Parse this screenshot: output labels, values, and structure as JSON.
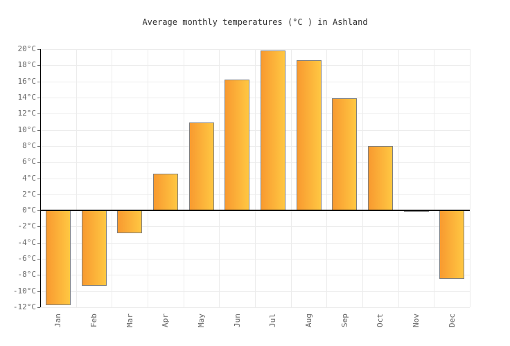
{
  "title": "Average monthly temperatures (°C ) in Ashland",
  "chart_data": {
    "type": "bar",
    "title": "Average monthly temperatures (°C ) in Ashland",
    "categories": [
      "Jan",
      "Feb",
      "Mar",
      "Apr",
      "May",
      "Jun",
      "Jul",
      "Aug",
      "Sep",
      "Oct",
      "Nov",
      "Dec"
    ],
    "values": [
      -11.7,
      -9.3,
      -2.8,
      4.6,
      10.9,
      16.2,
      19.8,
      18.6,
      13.9,
      8.0,
      -0.2,
      -8.5
    ],
    "xlabel": "",
    "ylabel": "",
    "ylim": [
      -12,
      20
    ],
    "ytick_step": 2,
    "y_tick_labels": [
      "20°C",
      "18°C",
      "16°C",
      "14°C",
      "12°C",
      "10°C",
      "8°C",
      "6°C",
      "4°C",
      "2°C",
      "0°C",
      "-2°C",
      "-4°C",
      "-6°C",
      "-8°C",
      "-10°C",
      "-12°C"
    ],
    "grid": true,
    "legend": "none",
    "x_label_rotation": -90,
    "colors": {
      "bar_gradient_left": "#f89a30",
      "bar_gradient_right": "#ffc742",
      "bar_border": "#7f7f7f",
      "grid_line": "#ececec",
      "axis_line": "#000000",
      "tick_label": "#666666",
      "title_text": "#333333",
      "background": "#ffffff"
    }
  }
}
